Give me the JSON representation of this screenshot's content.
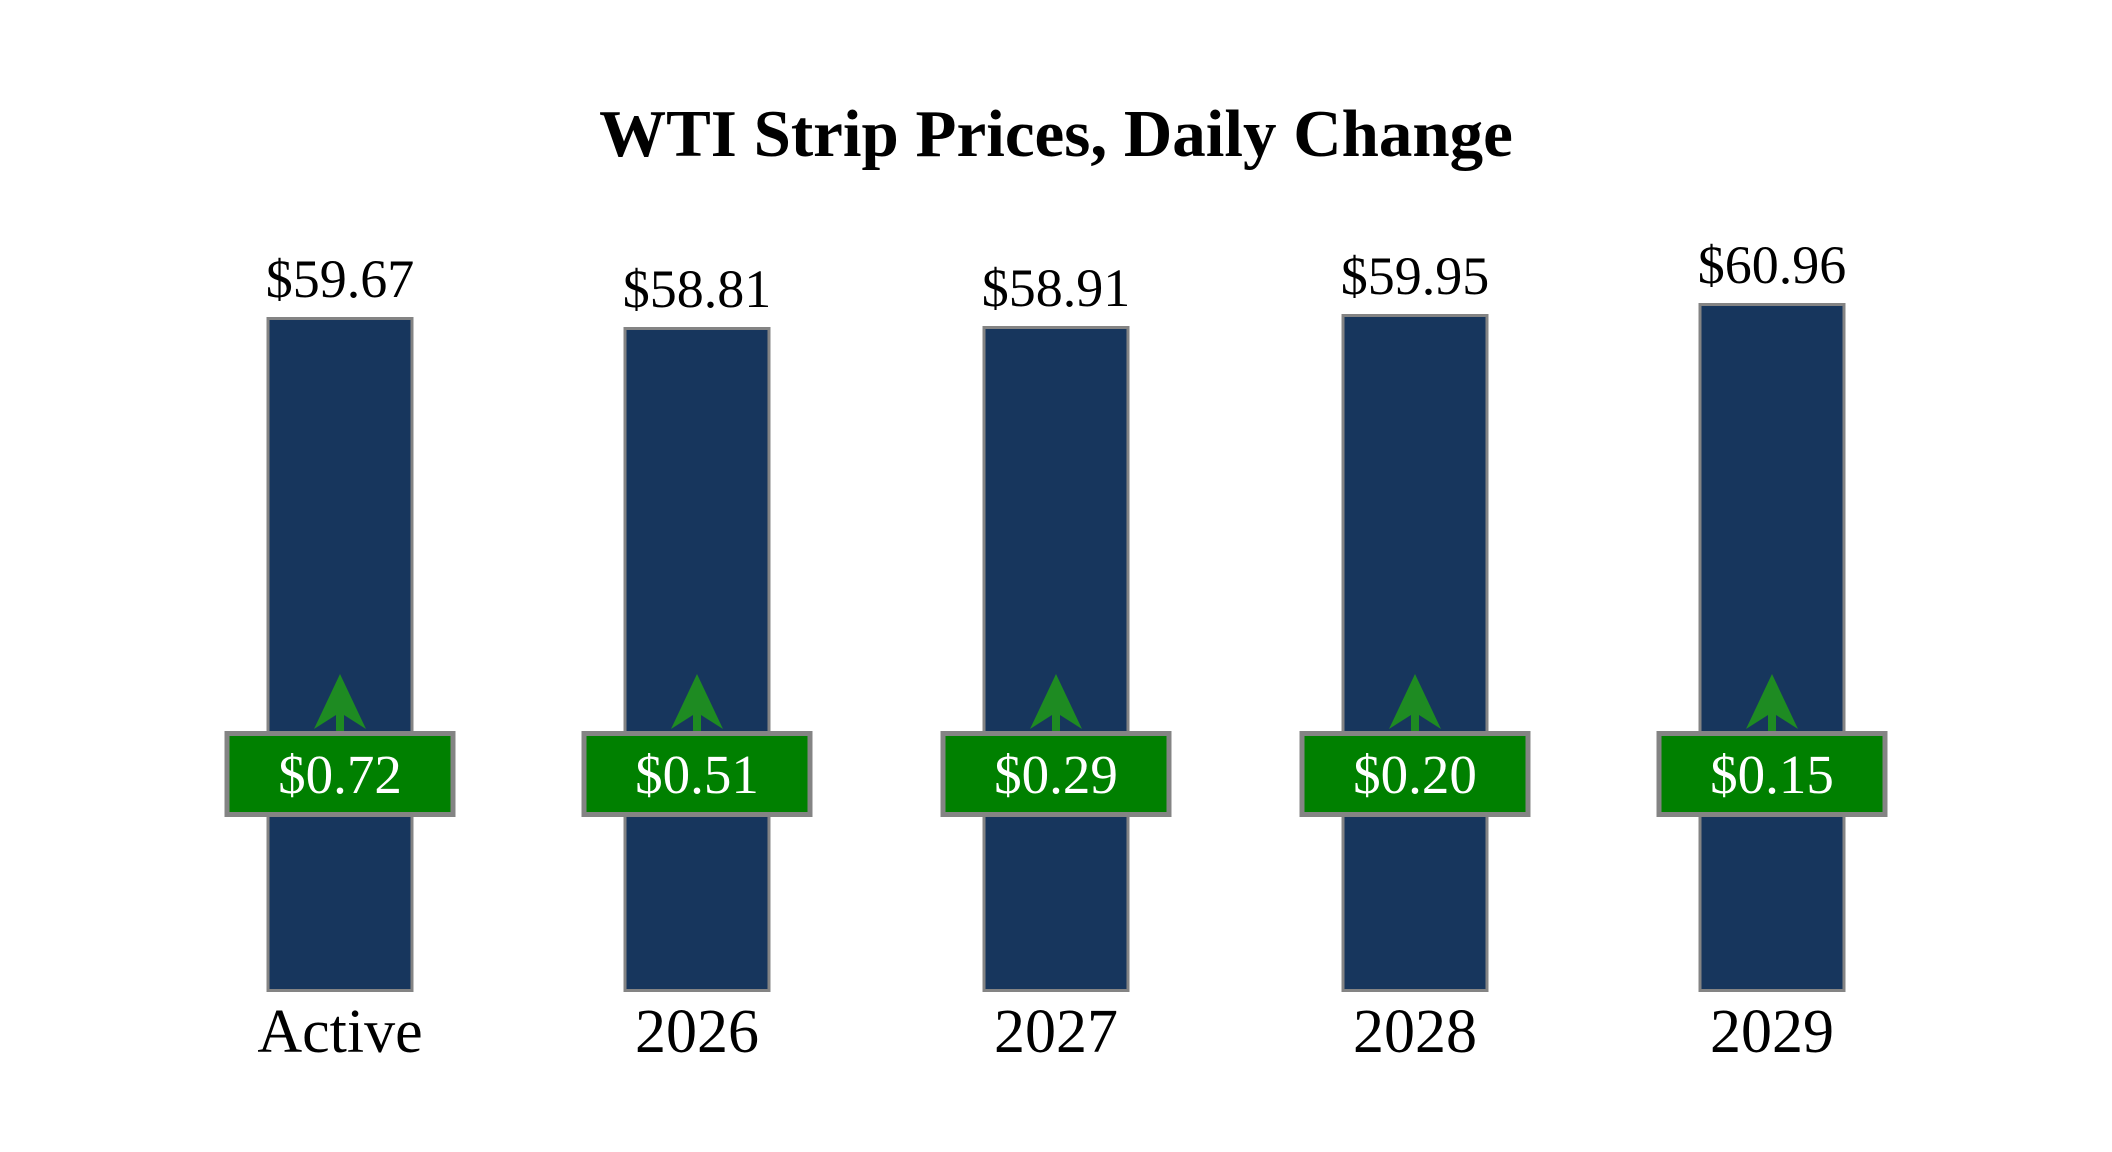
{
  "title": "WTI Strip Prices, Daily Change",
  "chart_data": {
    "type": "bar",
    "title": "WTI Strip Prices, Daily Change",
    "categories": [
      "Active",
      "2026",
      "2027",
      "2028",
      "2029"
    ],
    "series": [
      {
        "name": "strip_price_usd",
        "values": [
          59.67,
          58.81,
          58.91,
          59.95,
          60.96
        ]
      },
      {
        "name": "daily_change_usd",
        "values": [
          0.72,
          0.51,
          0.29,
          0.2,
          0.15
        ]
      }
    ],
    "price_labels": [
      "$59.67",
      "$58.81",
      "$58.91",
      "$59.95",
      "$60.96"
    ],
    "change_labels": [
      "$0.72",
      "$0.51",
      "$0.29",
      "$0.20",
      "$0.15"
    ],
    "xlabel": "",
    "ylabel": "",
    "ylim": [
      0,
      61
    ],
    "grid": false,
    "legend": "none",
    "colors": {
      "bar_fill": "#17365D",
      "bar_border": "#848484",
      "badge_fill": "#008000",
      "badge_border": "#848484",
      "badge_text": "#FFFFFF",
      "arrow": "#1E8B22",
      "label_text": "#000000",
      "background": "#FFFFFF"
    }
  }
}
